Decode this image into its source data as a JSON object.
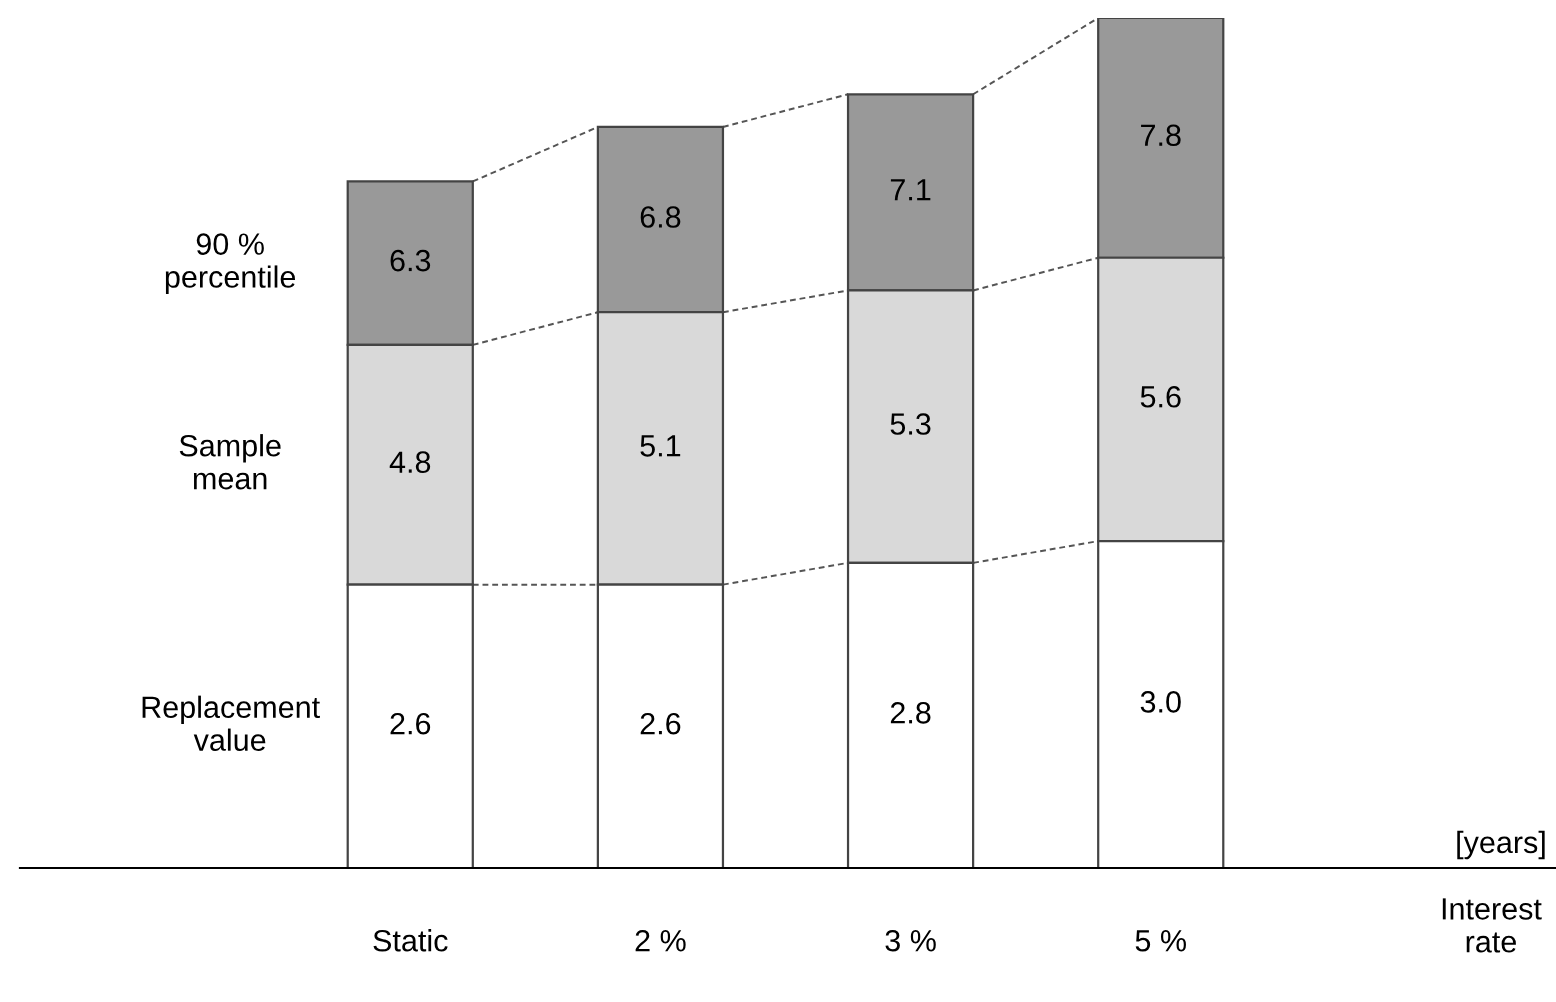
{
  "chart_data": {
    "type": "bar",
    "stacked": true,
    "legend": false,
    "categories": [
      "Static",
      "2 %",
      "3 %",
      "5 %"
    ],
    "annotations": [
      "[years]",
      "Interest\nrate",
      "4.8",
      "5.1",
      "5.3",
      "5.6",
      "6.3",
      "6.8",
      "7.1",
      "7.8"
    ],
    "series": [
      {
        "name": "Replacement\nvalue",
        "color": "#ffffff",
        "values": [
          2.6,
          2.6,
          2.8,
          3.0
        ],
        "value_labels": [
          "2.6",
          "2.6",
          "2.8",
          "3.0"
        ]
      },
      {
        "name": "Sample\nmean",
        "color": "#d9d9d9",
        "values": [
          2.2,
          2.5,
          2.5,
          2.6
        ]
      },
      {
        "name": "90 %\npercentile",
        "color": "#999999",
        "values": [
          1.5,
          1.7,
          1.8,
          2.2
        ]
      }
    ]
  }
}
